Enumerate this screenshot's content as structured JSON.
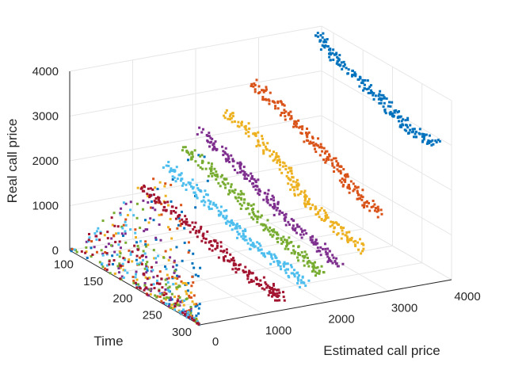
{
  "chart_data": {
    "type": "scatter",
    "projection": "3d",
    "title": "",
    "xlabel": "Estimated call price",
    "ylabel": "Time",
    "zlabel": "Real call price",
    "xlim": [
      0,
      4000
    ],
    "ylim": [
      80,
      300
    ],
    "zlim": [
      0,
      4000
    ],
    "xticks": [
      "0",
      "1000",
      "2000",
      "3000",
      "4000"
    ],
    "yticks": [
      "100",
      "150",
      "200",
      "250",
      "300"
    ],
    "zticks": [
      "0",
      "1000",
      "2000",
      "3000",
      "4000"
    ],
    "grid": true,
    "legend": "none",
    "colors": [
      "#0072BD",
      "#D95319",
      "#EDB120",
      "#7E2F8E",
      "#77AC30",
      "#4DBEEE",
      "#A2142F"
    ],
    "series": [
      {
        "color": "#0072BD",
        "points": [
          [
            3880,
            85,
            3880
          ],
          [
            3850,
            120,
            3600
          ],
          [
            3900,
            160,
            3350
          ],
          [
            3950,
            200,
            3100
          ],
          [
            3880,
            240,
            2950
          ],
          [
            3960,
            280,
            2850
          ]
        ]
      },
      {
        "color": "#D95319",
        "points": [
          [
            2900,
            82,
            3000
          ],
          [
            3000,
            120,
            2700
          ],
          [
            3050,
            160,
            2350
          ],
          [
            3100,
            200,
            2050
          ],
          [
            3000,
            240,
            1800
          ],
          [
            3100,
            275,
            1500
          ]
        ]
      },
      {
        "color": "#EDB120",
        "points": [
          [
            2450,
            82,
            2500
          ],
          [
            2550,
            130,
            2200
          ],
          [
            2600,
            170,
            1800
          ],
          [
            2500,
            210,
            1500
          ],
          [
            2600,
            250,
            1200
          ],
          [
            2700,
            290,
            900
          ]
        ]
      },
      {
        "color": "#7E2F8E",
        "points": [
          [
            2050,
            82,
            2150
          ],
          [
            2100,
            130,
            1850
          ],
          [
            2150,
            170,
            1550
          ],
          [
            2100,
            210,
            1300
          ],
          [
            2200,
            260,
            1000
          ],
          [
            2250,
            295,
            700
          ]
        ]
      },
      {
        "color": "#77AC30",
        "points": [
          [
            1800,
            82,
            1850
          ],
          [
            1850,
            130,
            1600
          ],
          [
            1900,
            170,
            1300
          ],
          [
            1850,
            220,
            1050
          ],
          [
            1950,
            260,
            800
          ],
          [
            2000,
            295,
            600
          ]
        ]
      },
      {
        "color": "#4DBEEE",
        "points": [
          [
            1500,
            82,
            1550
          ],
          [
            1550,
            130,
            1300
          ],
          [
            1600,
            180,
            1050
          ],
          [
            1550,
            220,
            850
          ],
          [
            1650,
            260,
            650
          ],
          [
            1700,
            298,
            450
          ]
        ]
      },
      {
        "color": "#A2142F",
        "points": [
          [
            1100,
            82,
            1150
          ],
          [
            1150,
            140,
            950
          ],
          [
            1200,
            190,
            750
          ],
          [
            1150,
            240,
            550
          ],
          [
            1250,
            280,
            400
          ],
          [
            1300,
            300,
            250
          ]
        ]
      }
    ]
  }
}
